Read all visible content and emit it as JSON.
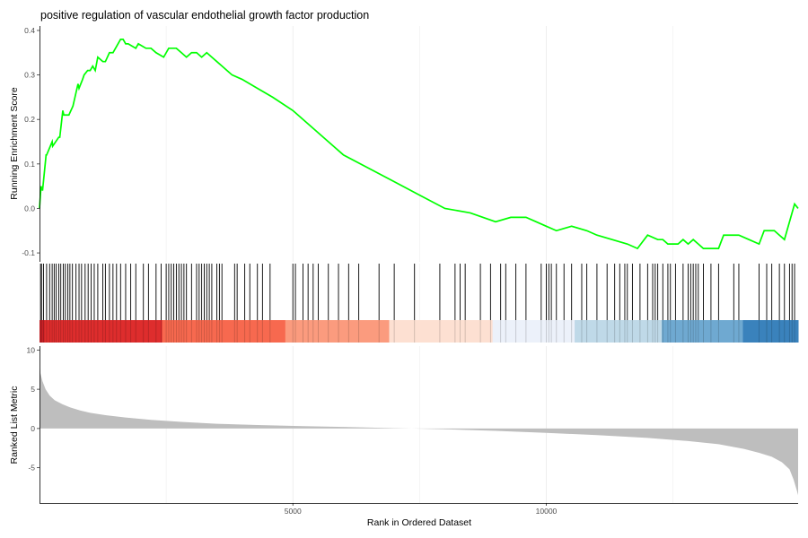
{
  "chart_data": {
    "type": "line",
    "title": "positive regulation of vascular endothelial growth factor production",
    "xlabel": "Rank in Ordered Dataset",
    "xlim": [
      0,
      14970
    ],
    "x_ticks": [
      5000,
      10000
    ],
    "x_tick_labels": [
      "5000",
      "10000"
    ],
    "grid": true,
    "panels": {
      "running_score": {
        "ylabel": "Running Enrichment Score",
        "ylim": [
          -0.12,
          0.41
        ],
        "y_ticks": [
          -0.1,
          0.0,
          0.1,
          0.2,
          0.3,
          0.4
        ],
        "y_tick_labels": [
          "-0.1",
          "0.0",
          "0.1",
          "0.2",
          "0.3",
          "0.4"
        ],
        "line_color": "#00ff00",
        "series": [
          {
            "x": [
              0,
              30,
              60,
              130,
              140,
              250,
              260,
              380,
              400,
              420,
              460,
              480,
              580,
              620,
              660,
              700,
              720,
              760,
              780,
              850,
              880,
              950,
              1000,
              1050,
              1100,
              1150,
              1250,
              1300,
              1380,
              1450,
              1500,
              1600,
              1650,
              1700,
              1750,
              1900,
              1950,
              2100,
              2200,
              2300,
              2450,
              2550,
              2600,
              2700,
              2800,
              2900,
              3000,
              3100,
              3200,
              3300,
              3400,
              3500,
              3600,
              3700,
              3800,
              4000,
              4300,
              4600,
              5000,
              5400,
              5800,
              6000,
              6500,
              7000,
              7500,
              8000,
              8500,
              9000,
              9300,
              9600,
              9800,
              10000,
              10200,
              10500,
              10800,
              11000,
              11300,
              11600,
              11800,
              12000,
              12200,
              12300,
              12400,
              12600,
              12700,
              12800,
              12900,
              13000,
              13100,
              13200,
              13400,
              13500,
              13800,
              14000,
              14200,
              14300,
              14500,
              14600,
              14700,
              14800,
              14900,
              14970
            ],
            "y": [
              0.0,
              0.05,
              0.04,
              0.12,
              0.12,
              0.15,
              0.14,
              0.16,
              0.16,
              0.18,
              0.22,
              0.21,
              0.21,
              0.22,
              0.23,
              0.25,
              0.26,
              0.28,
              0.27,
              0.29,
              0.3,
              0.31,
              0.31,
              0.32,
              0.31,
              0.34,
              0.33,
              0.33,
              0.35,
              0.35,
              0.36,
              0.38,
              0.38,
              0.37,
              0.37,
              0.36,
              0.37,
              0.36,
              0.36,
              0.35,
              0.34,
              0.36,
              0.36,
              0.36,
              0.35,
              0.34,
              0.35,
              0.35,
              0.34,
              0.35,
              0.34,
              0.33,
              0.32,
              0.31,
              0.3,
              0.29,
              0.27,
              0.25,
              0.22,
              0.18,
              0.14,
              0.12,
              0.09,
              0.06,
              0.03,
              0.0,
              -0.01,
              -0.03,
              -0.02,
              -0.02,
              -0.03,
              -0.04,
              -0.05,
              -0.04,
              -0.05,
              -0.06,
              -0.07,
              -0.08,
              -0.09,
              -0.06,
              -0.07,
              -0.07,
              -0.08,
              -0.08,
              -0.07,
              -0.08,
              -0.07,
              -0.08,
              -0.09,
              -0.09,
              -0.09,
              -0.06,
              -0.06,
              -0.07,
              -0.08,
              -0.05,
              -0.05,
              -0.06,
              -0.07,
              -0.03,
              0.01,
              0.0
            ]
          }
        ]
      },
      "gene_hits": {
        "positions": [
          20,
          40,
          80,
          140,
          200,
          250,
          290,
          330,
          380,
          420,
          470,
          510,
          560,
          600,
          650,
          720,
          780,
          830,
          900,
          960,
          1020,
          1080,
          1150,
          1250,
          1300,
          1380,
          1450,
          1520,
          1600,
          1700,
          1800,
          1900,
          2050,
          2150,
          2300,
          2400,
          2500,
          2550,
          2600,
          2650,
          2700,
          2750,
          2800,
          2850,
          2900,
          3000,
          3100,
          3150,
          3200,
          3250,
          3300,
          3350,
          3400,
          3500,
          3550,
          3600,
          3850,
          3900,
          4050,
          4150,
          4300,
          4400,
          4550,
          5000,
          5050,
          5200,
          5300,
          5400,
          5500,
          5700,
          5900,
          6100,
          6300,
          6700,
          7000,
          7400,
          7900,
          8200,
          8300,
          8400,
          8700,
          8900,
          9100,
          9200,
          9400,
          9600,
          9900,
          10000,
          10050,
          10100,
          10200,
          10350,
          10500,
          10700,
          10800,
          11000,
          11200,
          11350,
          11450,
          11550,
          11600,
          11700,
          11850,
          12000,
          12100,
          12150,
          12200,
          12300,
          12400,
          12450,
          12550,
          12700,
          12800,
          12850,
          12900,
          12950,
          13000,
          13100,
          13250,
          13400,
          13700,
          13800,
          14200,
          14350,
          14450,
          14600,
          14700,
          14800,
          14850,
          14900
        ]
      },
      "rank_bands": {
        "colors": [
          "#c92126",
          "#de2d2d",
          "#f7694f",
          "#fb9b7e",
          "#fde0d2",
          "#ecf1fa",
          "#bfd9e8",
          "#6fa9d1",
          "#3a82bc"
        ],
        "breaks": [
          0,
          100,
          2420,
          4850,
          6900,
          8940,
          10560,
          12280,
          13880,
          14970
        ]
      },
      "ranked_metric": {
        "ylabel": "Ranked List Metric",
        "ylim": [
          -9.5,
          10.5
        ],
        "y_ticks": [
          -5,
          0,
          5,
          10
        ],
        "y_tick_labels": [
          "-5",
          "0",
          "5",
          "10"
        ],
        "fill_color": "#bebebe",
        "series": [
          {
            "x": [
              0,
              20,
              60,
              120,
              200,
              300,
              450,
              600,
              800,
              1000,
              1300,
              1700,
              2200,
              2800,
              3500,
              4300,
              5200,
              6000,
              7000,
              7350,
              8000,
              9000,
              10000,
              11000,
              12000,
              12800,
              13400,
              13900,
              14200,
              14450,
              14650,
              14800,
              14880,
              14940,
              14970
            ],
            "y": [
              7.8,
              7.0,
              6.0,
              5.0,
              4.2,
              3.6,
              3.1,
              2.7,
              2.3,
              2.0,
              1.7,
              1.4,
              1.1,
              0.85,
              0.6,
              0.45,
              0.3,
              0.2,
              0.05,
              0.0,
              -0.1,
              -0.3,
              -0.55,
              -0.85,
              -1.2,
              -1.6,
              -2.0,
              -2.6,
              -3.1,
              -3.6,
              -4.3,
              -5.2,
              -6.5,
              -7.8,
              -8.5
            ]
          }
        ]
      }
    }
  }
}
